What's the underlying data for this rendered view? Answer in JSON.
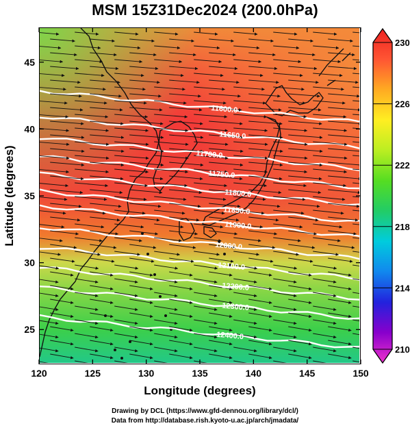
{
  "title": "MSM 15Z31Dec2024 (200.0hPa)",
  "footer": {
    "line1": "Drawing by DCL (https://www.gfd-dennou.org/library/dcl/)",
    "line2": "Data from http://database.rish.kyoto-u.ac.jp/arch/jmadata/"
  },
  "map": {
    "xlabel": "Longitude (degrees)",
    "ylabel": "Latitude  (degrees)",
    "xticks": [
      "120",
      "125",
      "130",
      "135",
      "140",
      "145",
      "150"
    ],
    "yticks": [
      "25",
      "30",
      "35",
      "40",
      "45"
    ],
    "lon_range": [
      120,
      150
    ],
    "lat_range": [
      22.4,
      47.6
    ],
    "contours": [
      {
        "label": "11600.0",
        "lat": 42.5
      },
      {
        "label": "11650.0",
        "lat": 40.6
      },
      {
        "label": "11700.0",
        "lat": 39.0
      },
      {
        "label": "11750.0",
        "lat": 37.6
      },
      {
        "label": "11800.0",
        "lat": 36.3
      },
      {
        "label": "11850.0",
        "lat": 35.0
      },
      {
        "label": "11900.0",
        "lat": 33.9
      },
      {
        "label": "12000.0",
        "lat": 32.3
      },
      {
        "label": "12100.0",
        "lat": 30.8
      },
      {
        "label": "12200.0",
        "lat": 29.3
      },
      {
        "label": "12300.0",
        "lat": 27.8
      },
      {
        "label": "12400.0",
        "lat": 25.6
      }
    ]
  },
  "colorbar": {
    "ticks": [
      "230",
      "226",
      "222",
      "218",
      "214",
      "210"
    ],
    "min": 210,
    "max": 230,
    "stops": [
      "#ee33cc",
      "#8800cc",
      "#2222dd",
      "#1188ee",
      "#00ccdd",
      "#22cc66",
      "#55dd22",
      "#bbee22",
      "#ffee22",
      "#ffaa22",
      "#ff5533",
      "#ee2222"
    ]
  }
}
